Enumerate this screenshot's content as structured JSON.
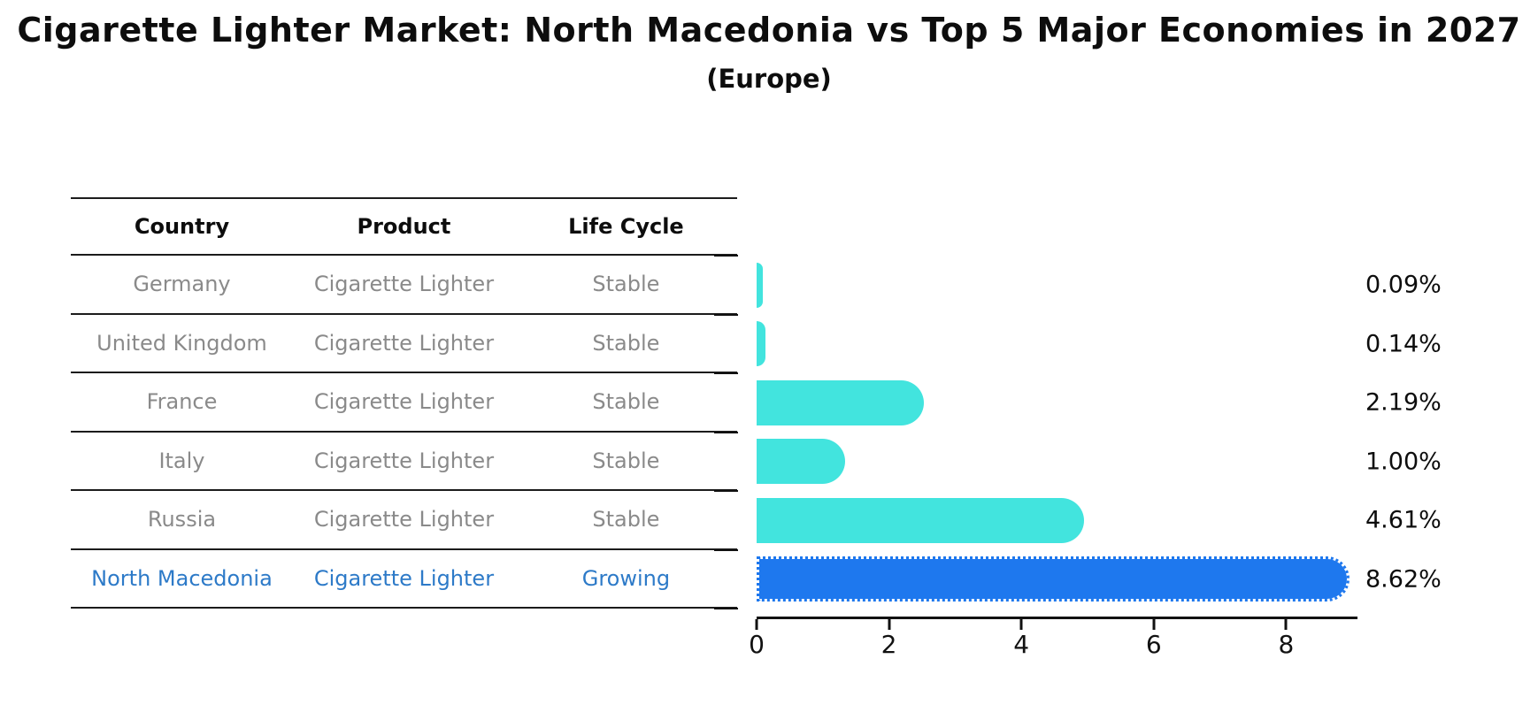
{
  "title": "Cigarette Lighter Market: North Macedonia vs Top 5 Major Economies in 2027",
  "subtitle": "(Europe)",
  "table": {
    "headers": [
      "Country",
      "Product",
      "Life Cycle"
    ],
    "rows": [
      {
        "country": "Germany",
        "product": "Cigarette Lighter",
        "life_cycle": "Stable"
      },
      {
        "country": "United Kingdom",
        "product": "Cigarette Lighter",
        "life_cycle": "Stable"
      },
      {
        "country": "France",
        "product": "Cigarette Lighter",
        "life_cycle": "Stable"
      },
      {
        "country": "Italy",
        "product": "Cigarette Lighter",
        "life_cycle": "Stable"
      },
      {
        "country": "Russia",
        "product": "Cigarette Lighter",
        "life_cycle": "Stable"
      },
      {
        "country": "North Macedonia",
        "product": "Cigarette Lighter",
        "life_cycle": "Growing"
      }
    ]
  },
  "chart_data": {
    "type": "bar",
    "orientation": "horizontal",
    "categories": [
      "Germany",
      "United Kingdom",
      "France",
      "Italy",
      "Russia",
      "North Macedonia"
    ],
    "values": [
      0.09,
      0.14,
      2.19,
      1.0,
      4.61,
      8.62
    ],
    "labels": [
      "0.09%",
      "0.14%",
      "2.19%",
      "1.00%",
      "4.61%",
      "8.62%"
    ],
    "x_ticks": [
      "0",
      "2",
      "4",
      "6",
      "8"
    ],
    "xlim": [
      0,
      9
    ],
    "grid": false,
    "legend": false,
    "bar_color": "#42E4DE",
    "highlight_color": "#1E78EE",
    "highlight_index": 5
  },
  "colors": {
    "bar_cyan": "#42E4DE",
    "bar_blue": "#1E78EE",
    "highlight_text": "#2D7AC8",
    "row_text": "#8A8A8A",
    "header_text": "#0D0D0D",
    "line": "#1C1C1C"
  }
}
